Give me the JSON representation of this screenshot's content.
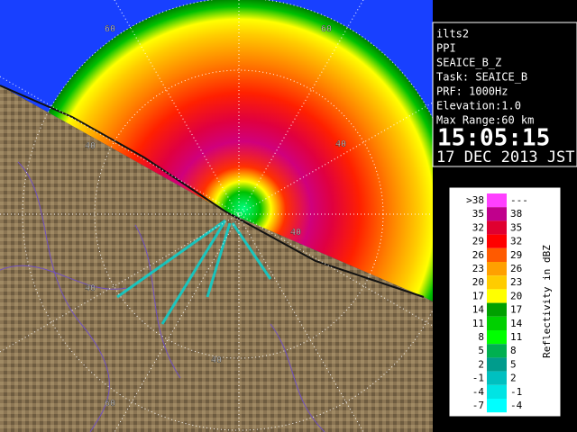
{
  "panel": {
    "lines": [
      "ilts2",
      "PPI",
      "SEAICE_B_Z",
      "Task: SEAICE_B",
      "PRF: 1000Hz",
      "Elevation:1.0",
      "Max Range:60 km"
    ],
    "time": "15:05:15",
    "date": "17 DEC 2013 JST"
  },
  "legend": {
    "title": "Reflectivity in dBZ",
    "rows": [
      {
        "low": ">38",
        "high": "---",
        "color": "#ff40ff"
      },
      {
        "low": "35",
        "high": "38",
        "color": "#c0008c"
      },
      {
        "low": "32",
        "high": "35",
        "color": "#e00030"
      },
      {
        "low": "29",
        "high": "32",
        "color": "#ff0000"
      },
      {
        "low": "26",
        "high": "29",
        "color": "#ff5a00"
      },
      {
        "low": "23",
        "high": "26",
        "color": "#ffa000"
      },
      {
        "low": "20",
        "high": "23",
        "color": "#ffcc00"
      },
      {
        "low": "17",
        "high": "20",
        "color": "#ffff00"
      },
      {
        "low": "14",
        "high": "17",
        "color": "#00a000"
      },
      {
        "low": "11",
        "high": "14",
        "color": "#00d000"
      },
      {
        "low": "8",
        "high": "11",
        "color": "#00ff00"
      },
      {
        "low": "5",
        "high": "8",
        "color": "#00b050"
      },
      {
        "low": "2",
        "high": "5",
        "color": "#009c8c"
      },
      {
        "low": "-1",
        "high": "2",
        "color": "#00c0c0"
      },
      {
        "low": "-4",
        "high": "-1",
        "color": "#00e4e4"
      },
      {
        "low": "-7",
        "high": "-4",
        "color": "#00ffff"
      }
    ]
  },
  "rings": [
    "60",
    "60",
    "40",
    "40",
    "40",
    "40",
    "40",
    "60"
  ]
}
